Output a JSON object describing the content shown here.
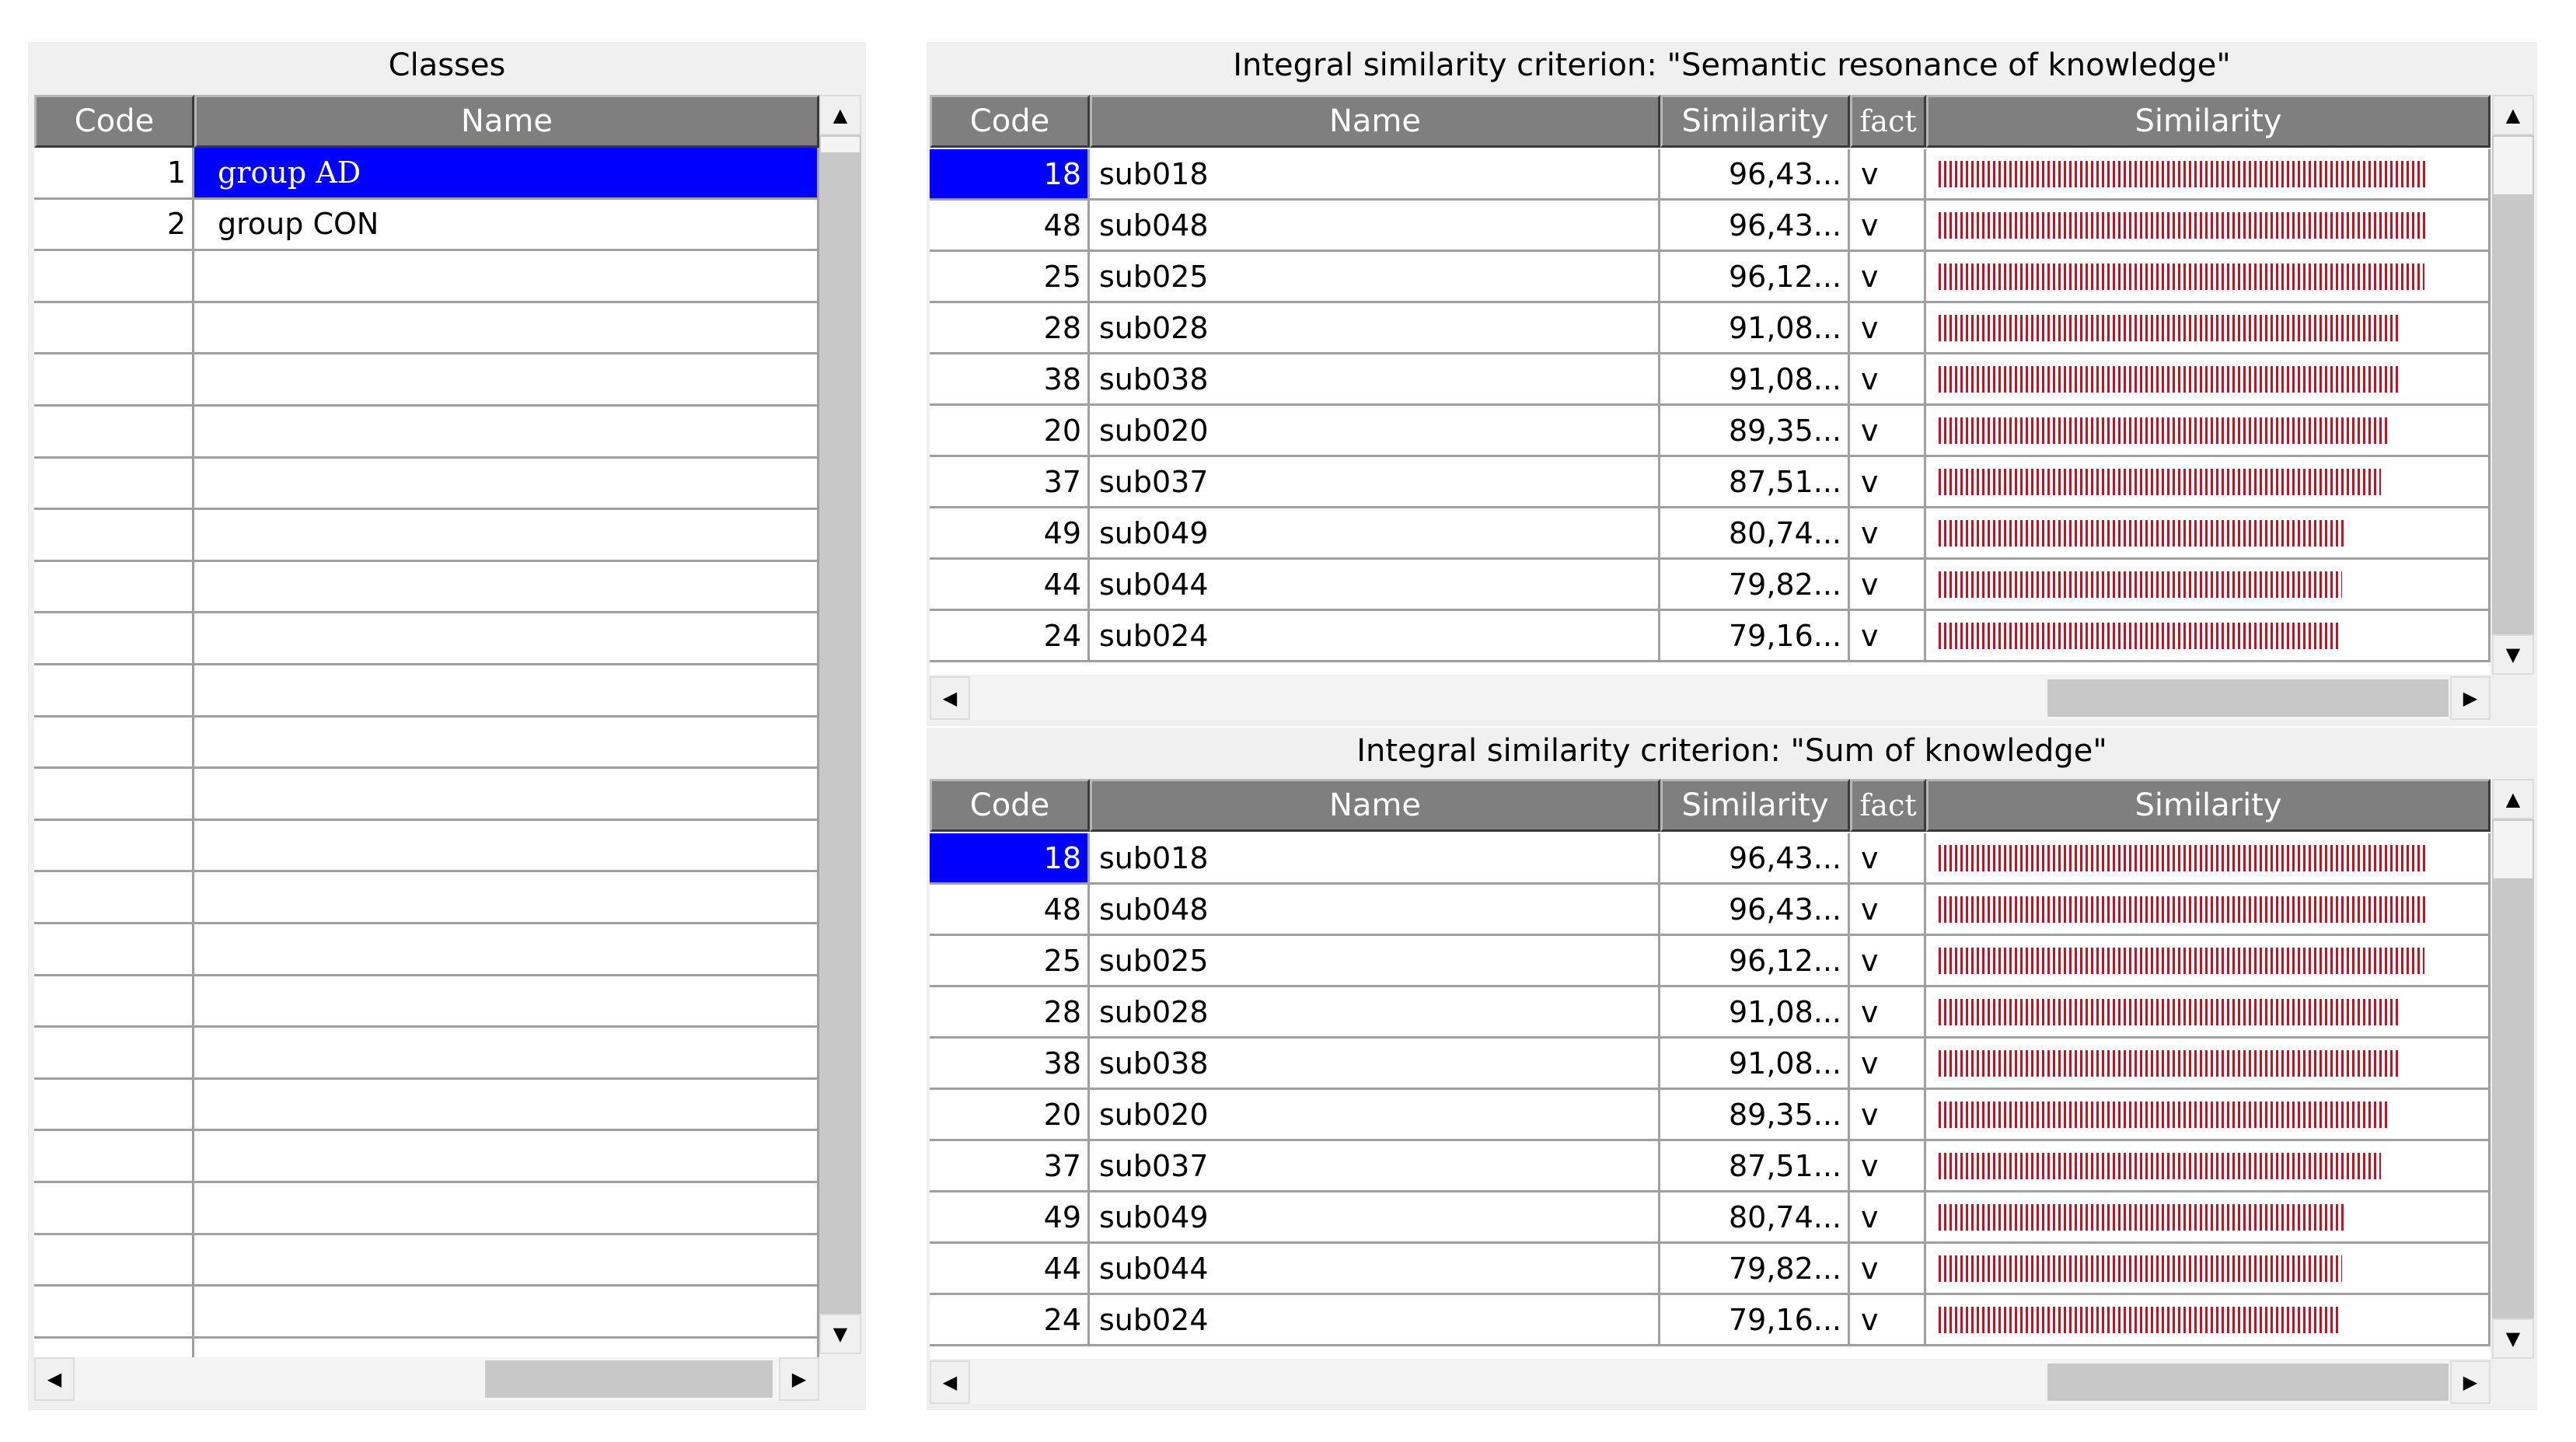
{
  "colors": {
    "selection": "#0000ff",
    "header_bg": "#7f7f7f",
    "bar": "#c8101e"
  },
  "classes_panel": {
    "title": "Classes",
    "columns": [
      "Code",
      "Name"
    ],
    "rows": [
      {
        "code": "1",
        "name": "group AD",
        "selected": true
      },
      {
        "code": "2",
        "name": "group CON",
        "selected": false
      }
    ]
  },
  "semantic_panel": {
    "title": "Integral similarity criterion: \"Semantic resonance of knowledge\"",
    "columns": [
      "Code",
      "Name",
      "Similarity",
      "fact",
      "Similarity"
    ],
    "rows": [
      {
        "code": "18",
        "name": "sub018",
        "similarity": "96,43...",
        "fact": "v",
        "value": 96.43
      },
      {
        "code": "48",
        "name": "sub048",
        "similarity": "96,43...",
        "fact": "v",
        "value": 96.43
      },
      {
        "code": "25",
        "name": "sub025",
        "similarity": "96,12...",
        "fact": "v",
        "value": 96.12
      },
      {
        "code": "28",
        "name": "sub028",
        "similarity": "91,08...",
        "fact": "v",
        "value": 91.08
      },
      {
        "code": "38",
        "name": "sub038",
        "similarity": "91,08...",
        "fact": "v",
        "value": 91.08
      },
      {
        "code": "20",
        "name": "sub020",
        "similarity": "89,35...",
        "fact": "v",
        "value": 89.35
      },
      {
        "code": "37",
        "name": "sub037",
        "similarity": "87,51...",
        "fact": "v",
        "value": 87.51
      },
      {
        "code": "49",
        "name": "sub049",
        "similarity": "80,74...",
        "fact": "v",
        "value": 80.74
      },
      {
        "code": "44",
        "name": "sub044",
        "similarity": "79,82...",
        "fact": "v",
        "value": 79.82
      },
      {
        "code": "24",
        "name": "sub024",
        "similarity": "79,16...",
        "fact": "v",
        "value": 79.16
      }
    ]
  },
  "sum_panel": {
    "title": "Integral similarity criterion: \"Sum of knowledge\"",
    "columns": [
      "Code",
      "Name",
      "Similarity",
      "fact",
      "Similarity"
    ],
    "rows": [
      {
        "code": "18",
        "name": "sub018",
        "similarity": "96,43...",
        "fact": "v",
        "value": 96.43
      },
      {
        "code": "48",
        "name": "sub048",
        "similarity": "96,43...",
        "fact": "v",
        "value": 96.43
      },
      {
        "code": "25",
        "name": "sub025",
        "similarity": "96,12...",
        "fact": "v",
        "value": 96.12
      },
      {
        "code": "28",
        "name": "sub028",
        "similarity": "91,08...",
        "fact": "v",
        "value": 91.08
      },
      {
        "code": "38",
        "name": "sub038",
        "similarity": "91,08...",
        "fact": "v",
        "value": 91.08
      },
      {
        "code": "20",
        "name": "sub020",
        "similarity": "89,35...",
        "fact": "v",
        "value": 89.35
      },
      {
        "code": "37",
        "name": "sub037",
        "similarity": "87,51...",
        "fact": "v",
        "value": 87.51
      },
      {
        "code": "49",
        "name": "sub049",
        "similarity": "80,74...",
        "fact": "v",
        "value": 80.74
      },
      {
        "code": "44",
        "name": "sub044",
        "similarity": "79,82...",
        "fact": "v",
        "value": 79.82
      },
      {
        "code": "24",
        "name": "sub024",
        "similarity": "79,16...",
        "fact": "v",
        "value": 79.16
      }
    ]
  }
}
